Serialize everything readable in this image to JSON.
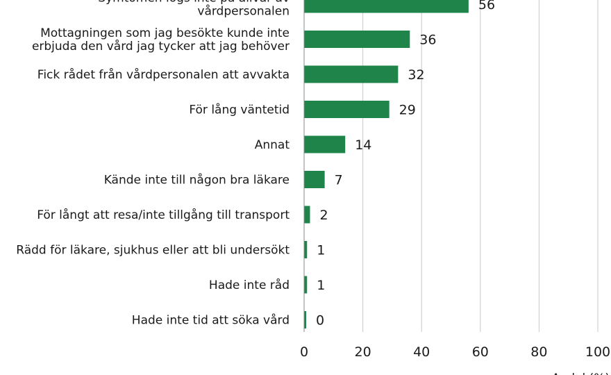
{
  "chart_data": {
    "type": "bar",
    "orientation": "horizontal",
    "categories": [
      [
        "Symtomen lögs inte på allvar av",
        "vårdpersonalen"
      ],
      [
        "Mottagningen som jag besökte kunde inte",
        "erbjuda den vård jag tycker att jag behöver"
      ],
      [
        "Fick rådet från vårdpersonalen att avvakta"
      ],
      [
        "För lång väntetid"
      ],
      [
        "Annat"
      ],
      [
        "Kände inte till någon bra läkare"
      ],
      [
        "För långt att resa/inte tillgång till transport"
      ],
      [
        "Rädd för läkare, sjukhus eller att bli undersökt"
      ],
      [
        "Hade inte råd"
      ],
      [
        "Hade inte tid att söka vård"
      ]
    ],
    "values": [
      56,
      36,
      32,
      29,
      14,
      7,
      2,
      1,
      1,
      0
    ],
    "value_labels": [
      "56",
      "36",
      "32",
      "29",
      "14",
      "7",
      "2",
      "1",
      "1",
      "0"
    ],
    "xlim": [
      0,
      100
    ],
    "xticks": [
      "0",
      "20",
      "40",
      "60",
      "80",
      "100"
    ],
    "xlabel": "Andel (%)",
    "grid": "vertical",
    "bar_color": "#1e8449",
    "grid_color": "#c8c8c8"
  }
}
